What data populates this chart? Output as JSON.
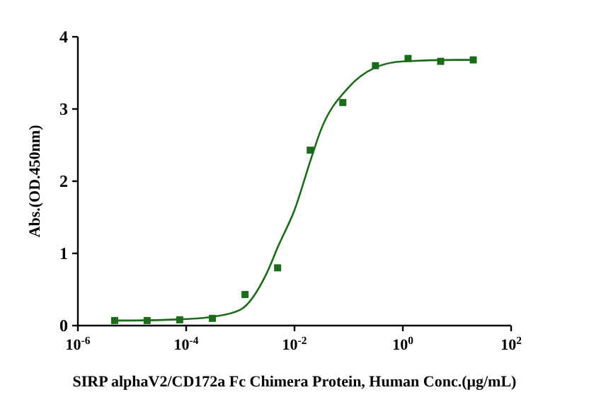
{
  "chart_data": {
    "type": "scatter",
    "xlabel": "SIRP alphaV2/CD172a Fc Chimera Protein, Human Conc.(μg/mL)",
    "ylabel": "Abs.(OD.450nm)",
    "log": "x",
    "xlim": [
      1e-06,
      100
    ],
    "xticks": [
      {
        "value": 1e-06,
        "label": "10$^{-6}$"
      },
      {
        "value": 0.0001,
        "label": "10$^{-4}$"
      },
      {
        "value": 0.01,
        "label": "10$^{-2}$"
      },
      {
        "value": 1,
        "label": "10$^{0}$"
      },
      {
        "value": 100,
        "label": "10$^{2}$"
      }
    ],
    "ylim": [
      0,
      4
    ],
    "yticks": [
      0,
      1,
      2,
      3,
      4
    ],
    "grid": false,
    "marker": "square",
    "series": [
      {
        "color": "#1b6b1b",
        "x": [
          4.77e-06,
          1.9e-05,
          7.6e-05,
          0.000305,
          0.00122,
          0.00488,
          0.0195,
          0.078,
          0.3125,
          1.25,
          5,
          20
        ],
        "values": [
          0.07,
          0.07,
          0.08,
          0.1,
          0.43,
          0.8,
          2.43,
          3.09,
          3.6,
          3.7,
          3.66,
          3.68
        ]
      },
      {
        "type": "line",
        "color": "#1b6b1b",
        "marker": "none",
        "x": [
          4.77e-06,
          1e-05,
          0.0001,
          0.0003,
          0.001,
          0.003,
          0.005,
          0.01,
          0.02,
          0.03,
          0.1,
          0.3,
          1,
          10,
          20
        ],
        "values": [
          0.07,
          0.07,
          0.09,
          0.12,
          0.22,
          0.71,
          1.1,
          1.6,
          2.3,
          2.69,
          3.3,
          3.57,
          3.66,
          3.68,
          3.68
        ]
      }
    ]
  }
}
